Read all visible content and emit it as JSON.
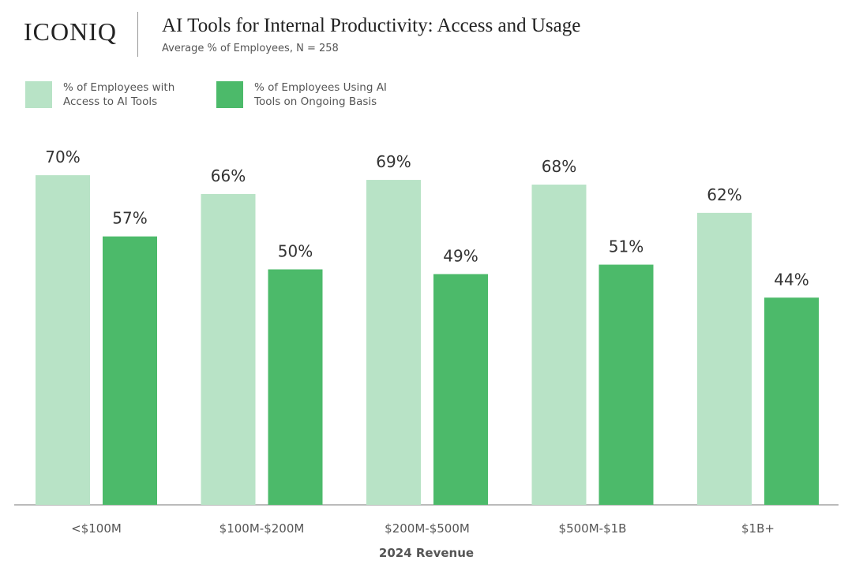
{
  "brand": "ICONIQ",
  "chart_data": {
    "type": "grouped-bar",
    "title": "AI Tools for Internal Productivity: Access and Usage",
    "subtitle": "Average % of Employees, N = 258",
    "x_label": "2024 Revenue",
    "categories": [
      "<$100M",
      "$100M-$200M",
      "$200M-$500M",
      "$500M-$1B",
      "$1B+"
    ],
    "series": [
      {
        "name": "% of Employees with Access to AI Tools",
        "color": "#b8e3c6",
        "values": [
          70,
          66,
          69,
          68,
          62
        ],
        "value_labels": [
          "70%",
          "66%",
          "69%",
          "68%",
          "62%"
        ]
      },
      {
        "name": "% of Employees Using AI Tools on Ongoing Basis",
        "color": "#4cba6a",
        "values": [
          57,
          50,
          49,
          51,
          44
        ],
        "value_labels": [
          "57%",
          "50%",
          "49%",
          "51%",
          "44%"
        ]
      }
    ],
    "legend": "top-left"
  }
}
